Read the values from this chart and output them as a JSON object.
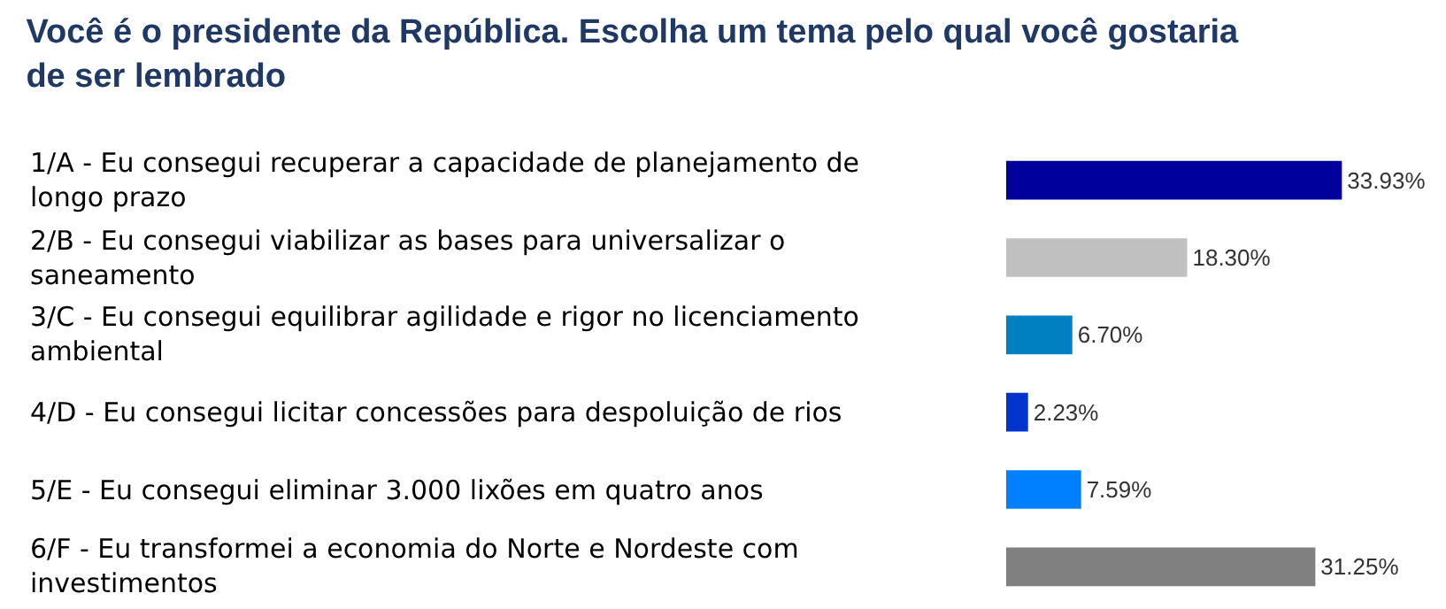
{
  "chart_data": {
    "type": "bar",
    "orientation": "horizontal",
    "title": "Você é o presidente da República. Escolha um tema pelo qual você gostaria de ser lembrado",
    "categories": [
      "1/A - Eu consegui recuperar a capacidade de planejamento de longo prazo",
      "2/B - Eu consegui viabilizar as bases para universalizar o saneamento",
      "3/C - Eu consegui equilibrar agilidade e rigor no licenciamento ambiental",
      "4/D - Eu consegui licitar concessões para despoluição de rios",
      "5/E - Eu consegui eliminar 3.000 lixões em quatro anos",
      "6/F - Eu transformei a economia do Norte e Nordeste com investimentos"
    ],
    "values": [
      33.93,
      18.3,
      6.7,
      2.23,
      7.59,
      31.25
    ],
    "colors": [
      "#00009c",
      "#c0c0c0",
      "#0080c0",
      "#0033cc",
      "#0080ff",
      "#808080"
    ],
    "value_labels": [
      "33.93%",
      "18.30%",
      "6.70%",
      "2.23%",
      "7.59%",
      "31.25%"
    ]
  }
}
